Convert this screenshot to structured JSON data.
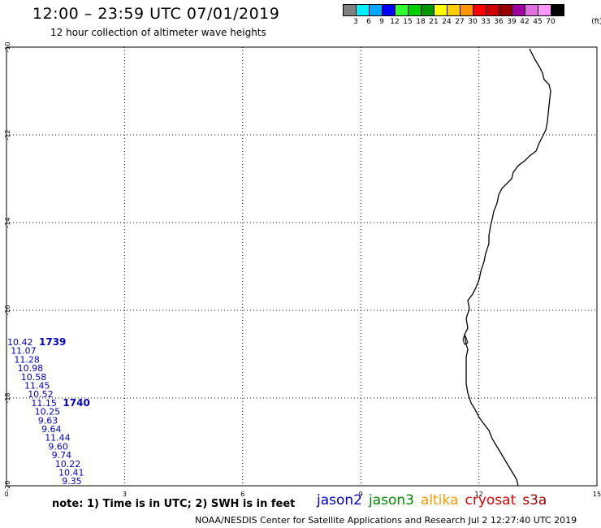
{
  "header": {
    "title": "12:00 – 23:59 UTC 07/01/2019",
    "subtitle": "12 hour collection of altimeter wave heights"
  },
  "legend": {
    "unit": "(ft)",
    "bins": [
      {
        "label": "3",
        "color": "#808080"
      },
      {
        "label": "6",
        "color": "#00f0ff"
      },
      {
        "label": "9",
        "color": "#00a8ff"
      },
      {
        "label": "12",
        "color": "#0000ff"
      },
      {
        "label": "15",
        "color": "#30ff30"
      },
      {
        "label": "18",
        "color": "#00d000"
      },
      {
        "label": "21",
        "color": "#009600"
      },
      {
        "label": "24",
        "color": "#ffff00"
      },
      {
        "label": "27",
        "color": "#ffcc00"
      },
      {
        "label": "30",
        "color": "#ff9600"
      },
      {
        "label": "33",
        "color": "#ff0000"
      },
      {
        "label": "36",
        "color": "#d00000"
      },
      {
        "label": "39",
        "color": "#960000"
      },
      {
        "label": "42",
        "color": "#a000a0"
      },
      {
        "label": "45",
        "color": "#e070e0"
      },
      {
        "label": "70",
        "color": "#ff96ff"
      },
      {
        "label": "",
        "color": "#000000"
      }
    ]
  },
  "map": {
    "x_ticks": [
      "0",
      "3",
      "6",
      "9",
      "12",
      "15"
    ],
    "y_ticks": [
      "-10",
      "-12",
      "-14",
      "-16",
      "-18",
      "-20"
    ],
    "wave_heights": [
      "10.42",
      "11.07",
      "11.28",
      "10.98",
      "10.58",
      "11.45",
      "10.52",
      "11.15",
      "10.25",
      "9.63",
      "9.64",
      "11.44",
      "9.60",
      "9.74",
      "10.22",
      "10.41",
      "9.35"
    ],
    "pass_labels": [
      {
        "text": "1739",
        "after_index": 0
      },
      {
        "text": "1740",
        "after_index": 7
      }
    ]
  },
  "notes": {
    "text": "note:  1) Time is in UTC;  2) SWH is in feet"
  },
  "satellites": [
    {
      "name": "jason2",
      "color": "#0000c8"
    },
    {
      "name": "jason3",
      "color": "#008800"
    },
    {
      "name": "altika",
      "color": "#ff9900"
    },
    {
      "name": "cryosat",
      "color": "#e00000"
    },
    {
      "name": "s3a",
      "color": "#a00000"
    }
  ],
  "footer": {
    "credit": "NOAA/NESDIS Center for Satellite Applications and Research   Jul  2 12:27:40 UTC 2019"
  }
}
